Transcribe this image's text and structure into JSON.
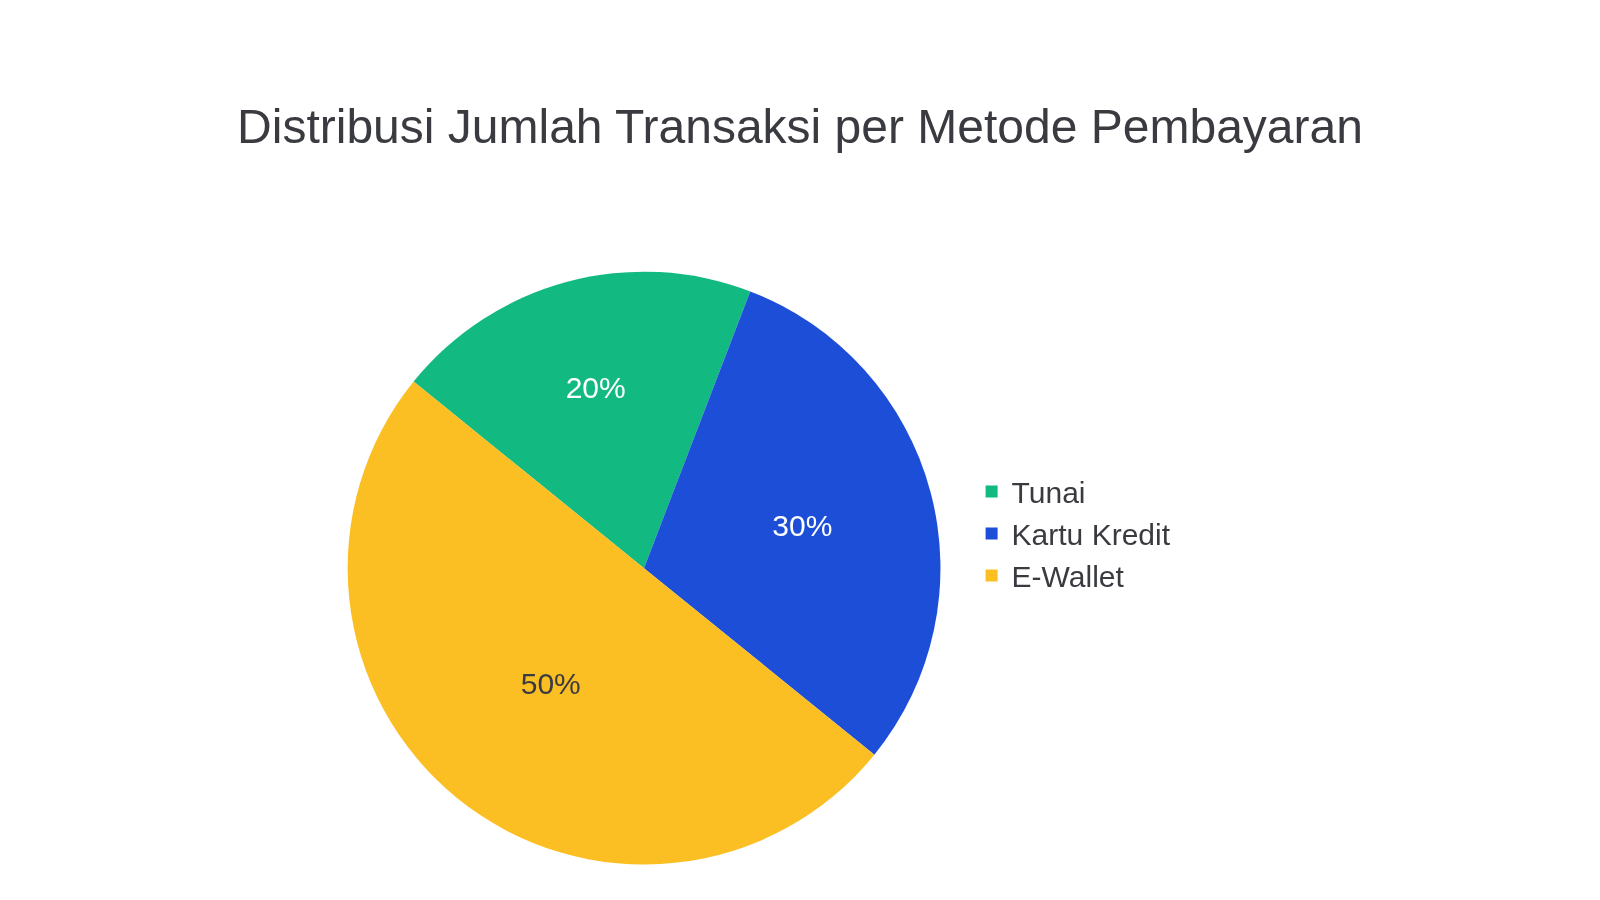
{
  "chart_data": {
    "type": "pie",
    "title": "Distribusi Jumlah Transaksi per Metode Pembayaran",
    "categories": [
      "Tunai",
      "Kartu Kredit",
      "E-Wallet"
    ],
    "values": [
      20,
      30,
      50
    ],
    "colors": [
      "#12b981",
      "#1d4ed8",
      "#fbbf24"
    ],
    "value_labels": [
      "20%",
      "30%",
      "50%"
    ],
    "legend": "right"
  }
}
